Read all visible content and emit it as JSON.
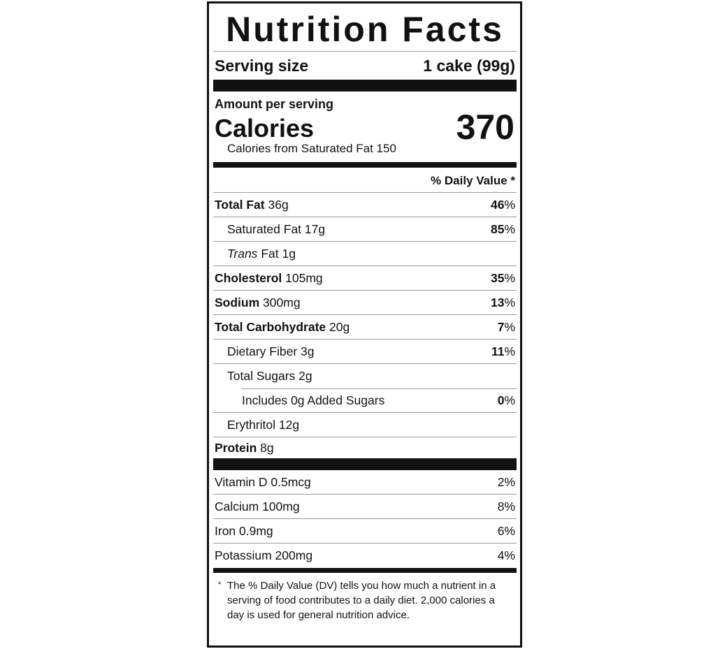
{
  "title": "Nutrition Facts",
  "serving": {
    "label": "Serving size",
    "value": "1 cake (99g)"
  },
  "amount_per_serving": "Amount per serving",
  "calories": {
    "label": "Calories",
    "value": "370",
    "from_sat_fat": "Calories from Saturated Fat 150"
  },
  "dv_header": "% Daily Value *",
  "nutrients": [
    {
      "name": "Total Fat",
      "amount": "36g",
      "dv": "46%",
      "bold": true,
      "indent": 0
    },
    {
      "name": "Saturated Fat",
      "amount": "17g",
      "dv": "85%",
      "bold": false,
      "indent": 1
    },
    {
      "name_italic": "Trans",
      "name": "Fat",
      "amount": "1g",
      "dv": "",
      "bold": false,
      "indent": 1
    },
    {
      "name": "Cholesterol",
      "amount": "105mg",
      "dv": "35%",
      "bold": true,
      "indent": 0
    },
    {
      "name": "Sodium",
      "amount": "300mg",
      "dv": "13%",
      "bold": true,
      "indent": 0
    },
    {
      "name": "Total Carbohydrate",
      "amount": "20g",
      "dv": "7%",
      "bold": true,
      "indent": 0
    },
    {
      "name": "Dietary Fiber",
      "amount": "3g",
      "dv": "11%",
      "bold": false,
      "indent": 1
    },
    {
      "name": "Total Sugars",
      "amount": "2g",
      "dv": "",
      "bold": false,
      "indent": 1
    },
    {
      "name": "Includes 0g Added Sugars",
      "amount": "",
      "dv": "0%",
      "bold": false,
      "indent": 2
    },
    {
      "name": "Erythritol",
      "amount": "12g",
      "dv": "",
      "bold": false,
      "indent": 1
    },
    {
      "name": "Protein",
      "amount": "8g",
      "dv": "",
      "bold": true,
      "indent": 0
    }
  ],
  "vitamins": [
    {
      "text": "Vitamin D 0.5mcg",
      "dv": "2%"
    },
    {
      "text": "Calcium 100mg",
      "dv": "8%"
    },
    {
      "text": "Iron 0.9mg",
      "dv": "6%"
    },
    {
      "text": "Potassium 200mg",
      "dv": "4%"
    }
  ],
  "footnote": {
    "asterisk": "*",
    "text": "The % Daily Value (DV) tells you how much a nutrient in a serving of food contributes to a daily diet. 2,000 calories a day is used for general nutrition advice."
  }
}
